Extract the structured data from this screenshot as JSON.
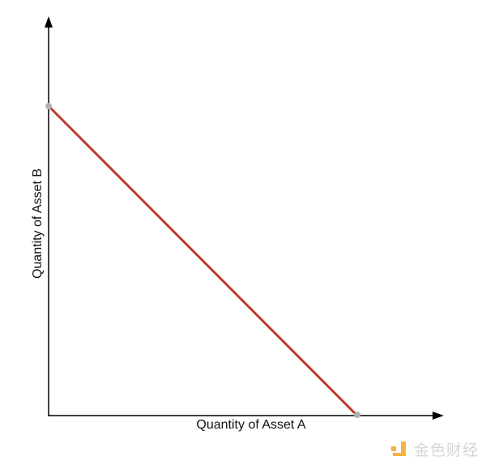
{
  "diagram": {
    "x_axis_label": "Quantity of Asset A",
    "y_axis_label": "Quantity of Asset B",
    "line_color": "#c0392b",
    "endpoint_color": "#b0b0b0",
    "axis_color": "#000000"
  },
  "watermark": {
    "text": "金色财经",
    "logo_color": "#f5a623"
  }
}
